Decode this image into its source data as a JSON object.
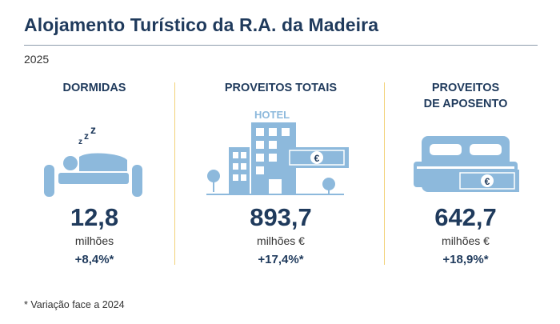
{
  "header": {
    "title": "Alojamento Turístico da R.A. da Madeira",
    "year": "2025"
  },
  "columns": [
    {
      "heading": "DORMIDAS",
      "value": "12,8",
      "unit": "milhões",
      "variation": "+8,4%*",
      "icon": "sleeping-person-icon"
    },
    {
      "heading": "PROVEITOS TOTAIS",
      "value": "893,7",
      "unit": "milhões €",
      "variation": "+17,4%*",
      "icon": "hotel-icon",
      "icon_label": "HOTEL"
    },
    {
      "heading": "PROVEITOS DE APOSENTO",
      "heading_line1": "PROVEITOS",
      "heading_line2": "DE APOSENTO",
      "value": "642,7",
      "unit": "milhões €",
      "variation": "+18,9%*",
      "icon": "bed-icon"
    }
  ],
  "footnote": "* Variação face a 2024",
  "colors": {
    "title": "#1f3a5c",
    "icon": "#8db9dc",
    "separator": "#f2d27a"
  }
}
